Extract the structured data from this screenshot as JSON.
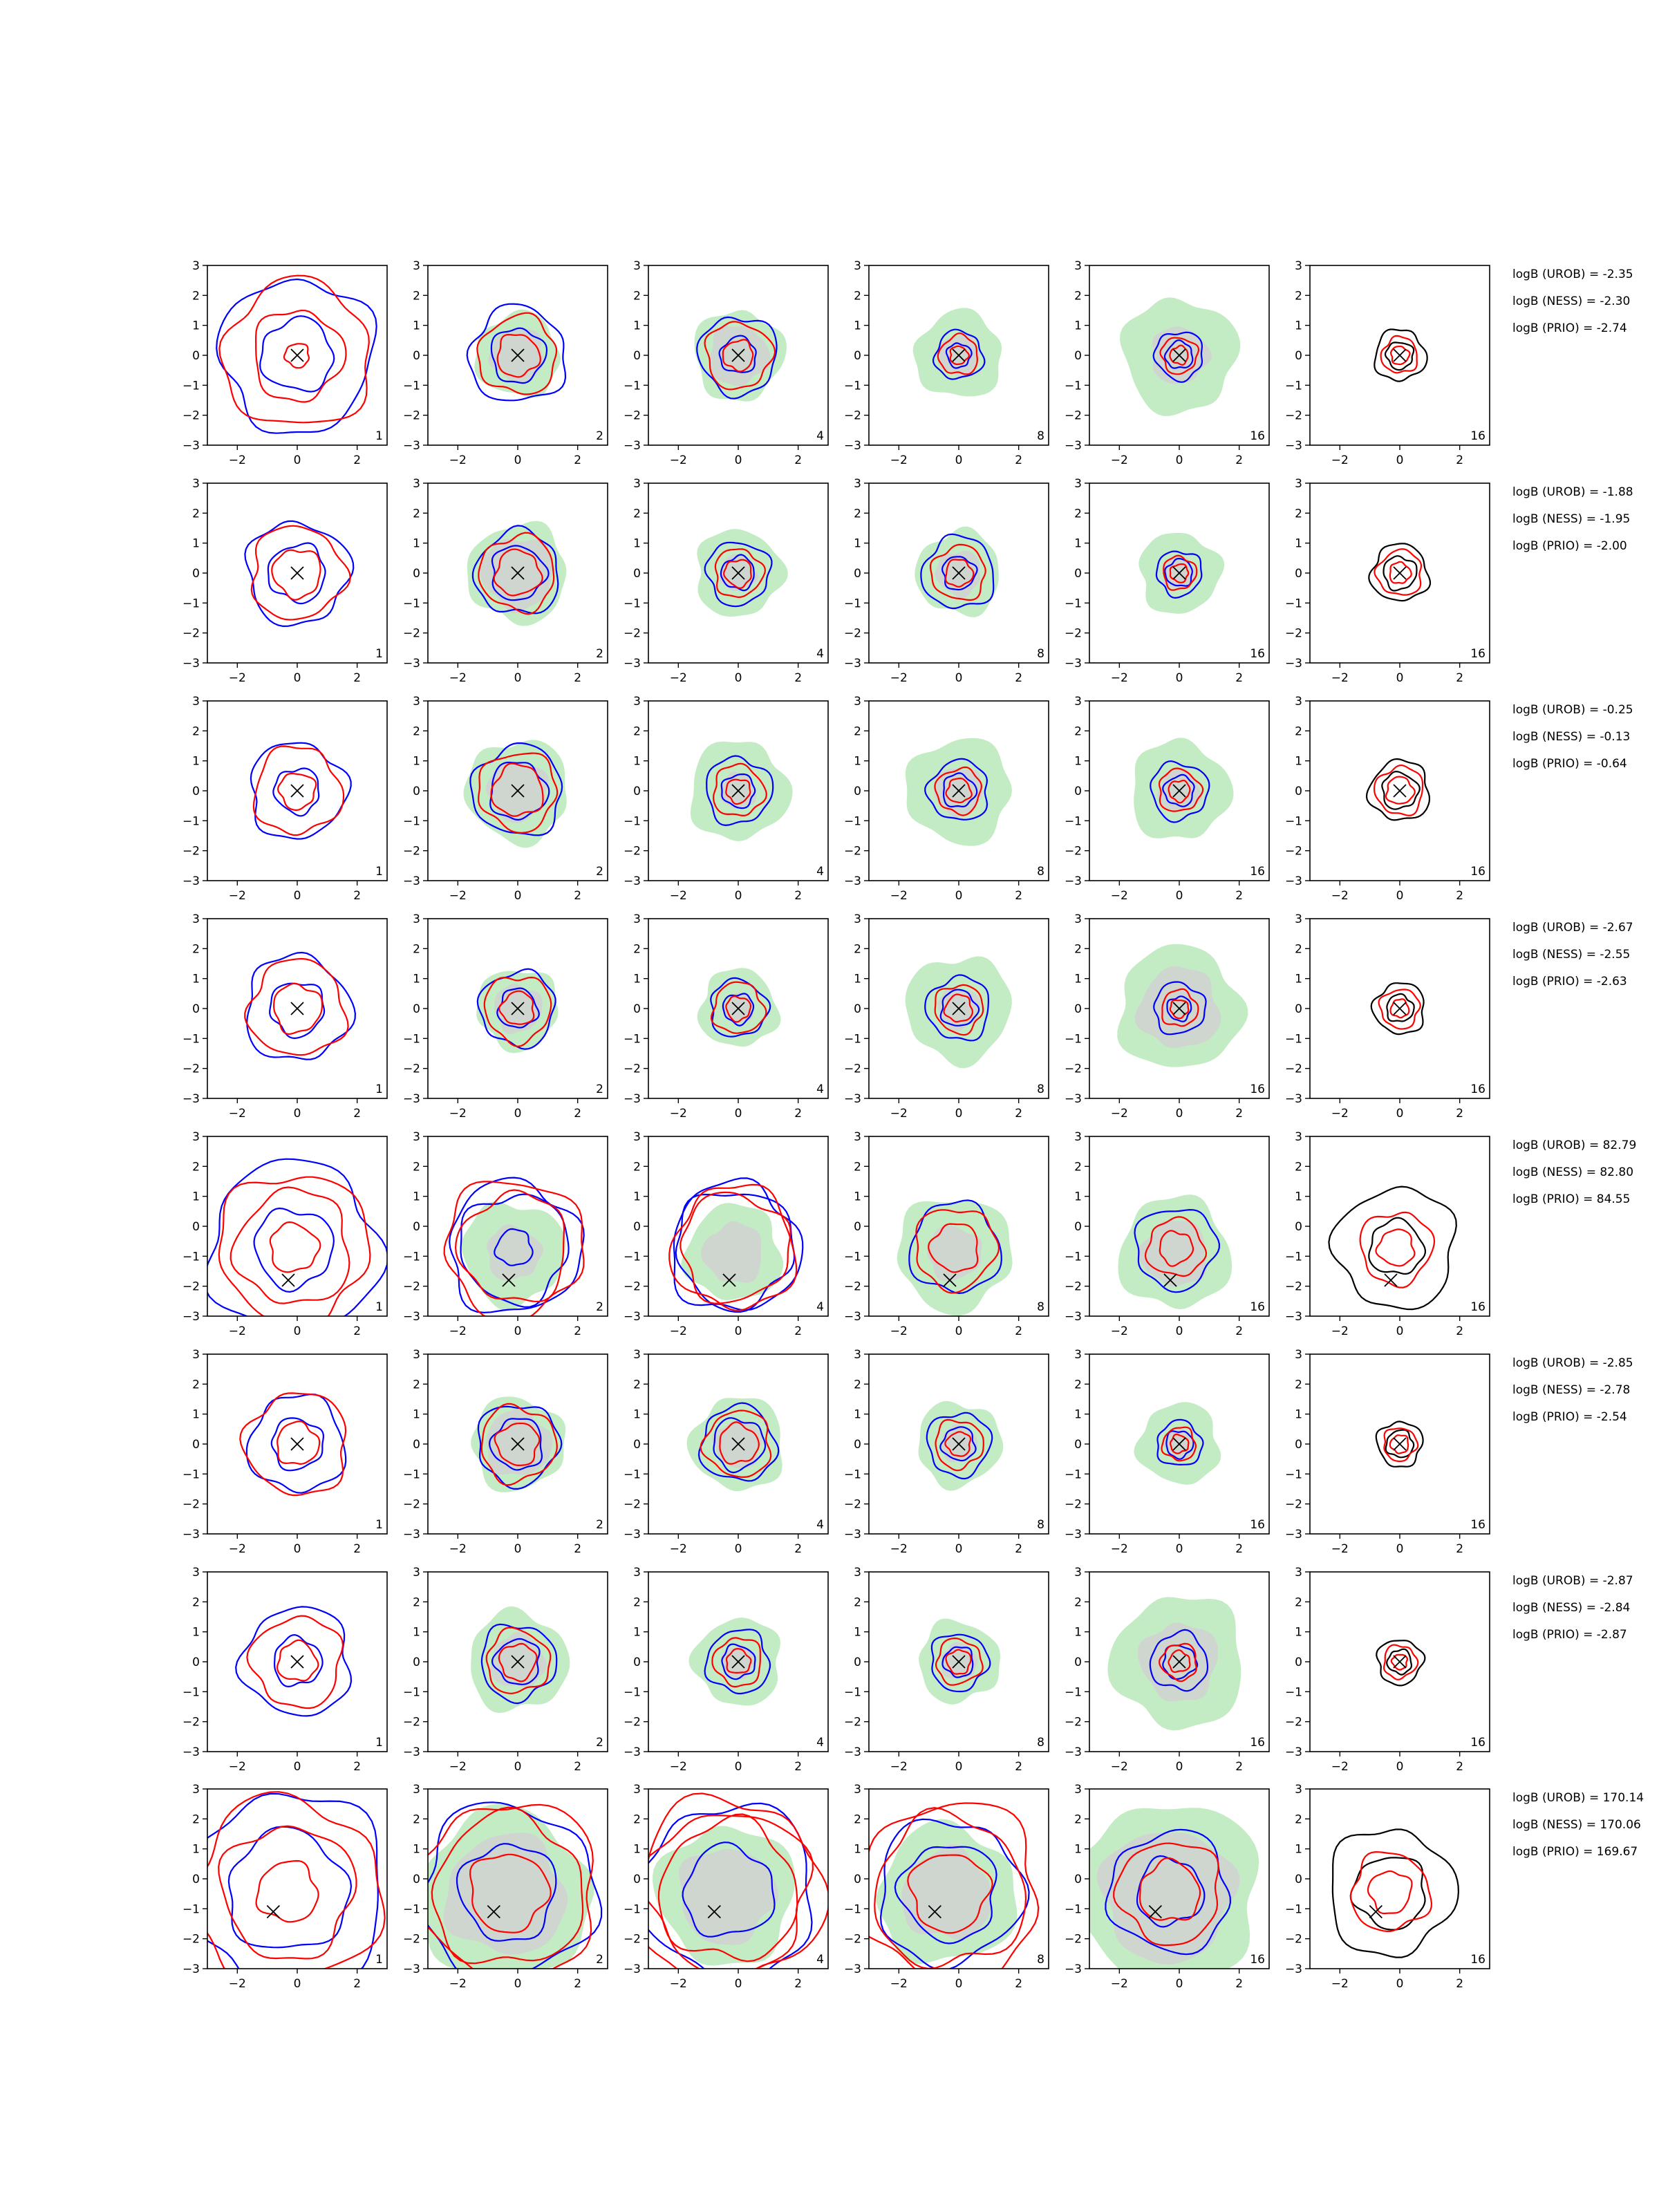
{
  "chart_data": {
    "type": "scatter",
    "grid": false,
    "xlim": [
      -3,
      3
    ],
    "ylim": [
      -3,
      3
    ],
    "xticks": [
      -2,
      0,
      2
    ],
    "yticks": [
      3,
      2,
      1,
      0,
      -1,
      -2,
      -3
    ],
    "colors": {
      "blue_contour": "#0000ff",
      "red_contour": "#ff0000",
      "black_contour": "#000000",
      "green_fill": "#c4ecc4",
      "gray_fill": "#cfd6cf",
      "marker": "#000000"
    },
    "columns": [
      {
        "label": "1",
        "kind": "contours"
      },
      {
        "label": "2",
        "kind": "contours"
      },
      {
        "label": "4",
        "kind": "contours"
      },
      {
        "label": "8",
        "kind": "contours"
      },
      {
        "label": "16",
        "kind": "contours"
      },
      {
        "label": "16",
        "kind": "black-contours"
      }
    ],
    "rows": [
      {
        "marker": [
          0,
          0
        ],
        "annotations": [
          "logB (UROB) = -2.35",
          "logB (NESS) = -2.30",
          "logB (PRIO) = -2.74"
        ],
        "panels": [
          {
            "green": 0,
            "gray": 0,
            "blue": [
              1.2,
              2.55
            ],
            "red": [
              0.4,
              1.5,
              2.45
            ]
          },
          {
            "green": 1.4,
            "gray": 0.9,
            "blue": [
              0.9,
              1.6
            ],
            "red": [
              0.7,
              1.3
            ]
          },
          {
            "green": 1.5,
            "gray": 1.0,
            "blue": [
              0.6,
              1.3
            ],
            "red": [
              0.5,
              1.1
            ]
          },
          {
            "green": 1.45,
            "gray": 0.7,
            "blue": [
              0.4,
              0.8
            ],
            "red": [
              0.3,
              0.65
            ]
          },
          {
            "green": 1.9,
            "gray": 0.95,
            "blue": [
              0.45,
              0.8
            ],
            "red": [
              0.3,
              0.6
            ]
          },
          {
            "green": 0,
            "gray": 0,
            "black": [
              0.45,
              0.85
            ],
            "red": [
              0.3,
              0.6
            ]
          }
        ]
      },
      {
        "marker": [
          0,
          0
        ],
        "annotations": [
          "logB (UROB) = -1.88",
          "logB (NESS) = -1.95",
          "logB (PRIO) = -2.00"
        ],
        "panels": [
          {
            "green": 0,
            "gray": 0,
            "blue": [
              0.95,
              1.7
            ],
            "red": [
              0.8,
              1.55
            ]
          },
          {
            "green": 1.65,
            "gray": 1.2,
            "blue": [
              0.9,
              1.4
            ],
            "red": [
              0.75,
              1.25
            ]
          },
          {
            "green": 1.45,
            "gray": 0.6,
            "blue": [
              0.55,
              1.05
            ],
            "red": [
              0.45,
              0.8
            ]
          },
          {
            "green": 1.4,
            "gray": 0.75,
            "blue": [
              0.55,
              1.2
            ],
            "red": [
              0.45,
              0.9
            ]
          },
          {
            "green": 1.35,
            "gray": 0.55,
            "blue": [
              0.45,
              0.75
            ],
            "red": [
              0.3,
              0.55
            ]
          },
          {
            "green": 0,
            "gray": 0,
            "black": [
              0.55,
              0.95
            ],
            "red": [
              0.35,
              0.75
            ]
          }
        ]
      },
      {
        "marker": [
          0,
          0
        ],
        "annotations": [
          "logB (UROB) = -0.25",
          "logB (NESS) = -0.13",
          "logB (PRIO) = -0.64"
        ],
        "panels": [
          {
            "green": 0,
            "gray": 0,
            "blue": [
              0.75,
              1.6
            ],
            "red": [
              0.6,
              1.45
            ]
          },
          {
            "green": 1.7,
            "gray": 1.0,
            "blue": [
              0.95,
              1.5
            ],
            "red": [
              0.85,
              1.3
            ]
          },
          {
            "green": 1.65,
            "gray": 0.6,
            "blue": [
              0.55,
              1.1
            ],
            "red": [
              0.4,
              0.85
            ]
          },
          {
            "green": 1.75,
            "gray": 0.8,
            "blue": [
              0.55,
              1.0
            ],
            "red": [
              0.4,
              0.75
            ]
          },
          {
            "green": 1.65,
            "gray": 0.7,
            "blue": [
              0.5,
              0.95
            ],
            "red": [
              0.35,
              0.7
            ]
          },
          {
            "green": 0,
            "gray": 0,
            "black": [
              0.6,
              1.0
            ],
            "red": [
              0.45,
              0.8
            ]
          }
        ]
      },
      {
        "marker": [
          0,
          0
        ],
        "annotations": [
          "logB (UROB) = -2.67",
          "logB (NESS) = -2.55",
          "logB (PRIO) = -2.63"
        ],
        "panels": [
          {
            "green": 0,
            "gray": 0,
            "blue": [
              0.9,
              1.75
            ],
            "red": [
              0.8,
              1.6
            ]
          },
          {
            "green": 1.35,
            "gray": 0.8,
            "blue": [
              0.65,
              1.25
            ],
            "red": [
              0.55,
              1.1
            ]
          },
          {
            "green": 1.3,
            "gray": 0.5,
            "blue": [
              0.5,
              0.95
            ],
            "red": [
              0.4,
              0.85
            ]
          },
          {
            "green": 1.75,
            "gray": 0.7,
            "blue": [
              0.6,
              1.05
            ],
            "red": [
              0.45,
              0.8
            ]
          },
          {
            "green": 2.05,
            "gray": 1.35,
            "blue": [
              0.4,
              0.85
            ],
            "red": [
              0.3,
              0.6
            ]
          },
          {
            "green": 0,
            "gray": 0,
            "black": [
              0.45,
              0.85
            ],
            "red": [
              0.3,
              0.65
            ]
          }
        ]
      },
      {
        "marker": [
          -0.3,
          -1.8
        ],
        "annotations": [
          "logB (UROB) = 82.79",
          "logB (NESS) = 82.80",
          "logB (PRIO) = 84.55"
        ],
        "panels": [
          {
            "green": 0,
            "gray": 0,
            "blue": [
              1.3,
              2.85
            ],
            "red": [
              0.8,
              1.9,
              2.5
            ]
          },
          {
            "green": 1.7,
            "gray": 0.9,
            "blue": [
              0.6,
              1.8,
              2.2
            ],
            "red": [
              1.8,
              2.3
            ]
          },
          {
            "green": 1.6,
            "gray": 1.0,
            "blue": [
              1.95,
              2.15
            ],
            "red": [
              1.8,
              2.05
            ]
          },
          {
            "green": 1.9,
            "gray": 0.9,
            "blue": [
              1.5
            ],
            "red": [
              0.8,
              1.35
            ]
          },
          {
            "green": 1.85,
            "gray": 1.1,
            "blue": [
              1.35
            ],
            "red": [
              0.55,
              0.95
            ]
          },
          {
            "green": 0,
            "gray": 0,
            "black": [
              0.9,
              2.0
            ],
            "red": [
              0.6,
              1.2
            ]
          }
        ]
      },
      {
        "marker": [
          0,
          0
        ],
        "annotations": [
          "logB (UROB) = -2.85",
          "logB (NESS) = -2.78",
          "logB (PRIO) = -2.54"
        ],
        "panels": [
          {
            "green": 0,
            "gray": 0,
            "blue": [
              0.85,
              1.6
            ],
            "red": [
              0.7,
              1.7
            ]
          },
          {
            "green": 1.55,
            "gray": 1.1,
            "blue": [
              0.85,
              1.35
            ],
            "red": [
              0.7,
              1.25
            ]
          },
          {
            "green": 1.55,
            "gray": 0.8,
            "blue": [
              0.85,
              1.25
            ],
            "red": [
              0.65,
              1.1
            ]
          },
          {
            "green": 1.4,
            "gray": 0.6,
            "blue": [
              0.55,
              1.05
            ],
            "red": [
              0.4,
              0.8
            ]
          },
          {
            "green": 1.35,
            "gray": 0.5,
            "blue": [
              0.45,
              0.75
            ],
            "red": [
              0.3,
              0.55
            ]
          },
          {
            "green": 0,
            "gray": 0,
            "black": [
              0.45,
              0.75
            ],
            "red": [
              0.3,
              0.55
            ]
          }
        ]
      },
      {
        "marker": [
          0,
          0
        ],
        "annotations": [
          "logB (UROB) = -2.87",
          "logB (NESS) = -2.84",
          "logB (PRIO) = -2.87"
        ],
        "panels": [
          {
            "green": 0,
            "gray": 0,
            "blue": [
              0.8,
              1.8
            ],
            "red": [
              0.65,
              1.5
            ]
          },
          {
            "green": 1.65,
            "gray": 0.9,
            "blue": [
              0.75,
              1.25
            ],
            "red": [
              0.6,
              1.05
            ]
          },
          {
            "green": 1.45,
            "gray": 0.55,
            "blue": [
              0.55,
              1.05
            ],
            "red": [
              0.4,
              0.8
            ]
          },
          {
            "green": 1.35,
            "gray": 0.6,
            "blue": [
              0.5,
              0.95
            ],
            "red": [
              0.4,
              0.75
            ]
          },
          {
            "green": 2.2,
            "gray": 1.3,
            "blue": [
              0.55,
              0.95
            ],
            "red": [
              0.35,
              0.6
            ]
          },
          {
            "green": 0,
            "gray": 0,
            "black": [
              0.4,
              0.75
            ],
            "red": [
              0.25,
              0.55
            ]
          }
        ]
      },
      {
        "marker": [
          -0.8,
          -1.1
        ],
        "annotations": [
          "logB (UROB) = 170.14",
          "logB (NESS) = 170.06",
          "logB (PRIO) = 169.67"
        ],
        "panels": [
          {
            "green": 0,
            "gray": 0,
            "blue": [
              2.0,
              3.3
            ],
            "red": [
              1.0,
              2.2,
              3.1
            ]
          },
          {
            "green": 2.8,
            "gray": 2.0,
            "blue": [
              1.6,
              2.9
            ],
            "red": [
              1.3,
              2.5,
              3.0
            ]
          },
          {
            "green": 2.3,
            "gray": 1.6,
            "blue": [
              1.5,
              2.9
            ],
            "red": [
              2.3,
              2.7,
              3.1
            ]
          },
          {
            "green": 2.3,
            "gray": 1.5,
            "blue": [
              1.6,
              2.4
            ],
            "red": [
              1.3,
              2.5,
              3.0
            ]
          },
          {
            "green": 3.1,
            "gray": 2.2,
            "blue": [
              1.1,
              2.0
            ],
            "red": [
              1.0,
              1.7
            ]
          },
          {
            "green": 0,
            "gray": 0,
            "black": [
              1.2,
              2.1
            ],
            "red": [
              0.7,
              1.3
            ]
          }
        ]
      }
    ]
  }
}
